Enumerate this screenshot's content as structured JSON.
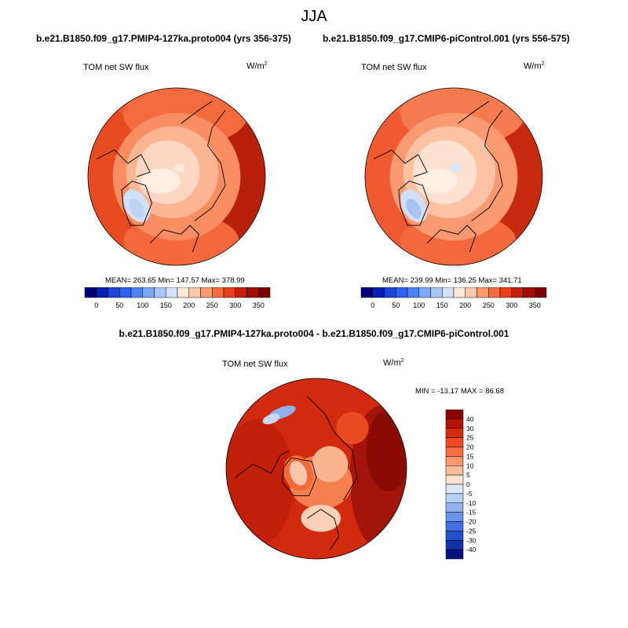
{
  "figure": {
    "season": "JJA"
  },
  "panels": [
    {
      "id": "left",
      "title": "b.e21.B1850.f09_g17.PMIP4-127ka.proto004 (yrs 356-375)",
      "variable": "TOM net SW flux",
      "units_base": "W/m",
      "units_exp": "2",
      "stats_text": "MEAN= 263.65  Min= 147.57  Max= 378.99",
      "mean": 263.65,
      "min": 147.57,
      "max": 378.99
    },
    {
      "id": "right",
      "title": "b.e21.B1850.f09_g17.CMIP6-piControl.001 (yrs 556-575)",
      "variable": "TOM net SW flux",
      "units_base": "W/m",
      "units_exp": "2",
      "stats_text": "MEAN= 239.99  Min= 136.25  Max= 341.71",
      "mean": 239.99,
      "min": 136.25,
      "max": 341.71
    },
    {
      "id": "diff",
      "title": "b.e21.B1850.f09_g17.PMIP4-127ka.proto004 - b.e21.B1850.f09_g17.CMIP6-piControl.001",
      "variable": "TOM net SW flux",
      "units_base": "W/m",
      "units_exp": "2",
      "stats_text": "MIN = -13.17 MAX =  86.68",
      "min": -13.17,
      "max": 86.68
    }
  ],
  "chart_data": [
    {
      "type": "heatmap",
      "projection": "north-polar-stereographic",
      "title": "b.e21.B1850.f09_g17.PMIP4-127ka.proto004 (yrs 356-375)",
      "variable": "TOM net SW flux",
      "units": "W/m2",
      "colorbar": {
        "orientation": "horizontal",
        "tick_labels": [
          "0",
          "50",
          "100",
          "150",
          "200",
          "250",
          "300",
          "350"
        ],
        "levels": [
          0,
          25,
          50,
          75,
          100,
          125,
          150,
          175,
          200,
          225,
          250,
          275,
          300,
          325,
          350
        ],
        "colors": [
          "#00007a",
          "#0a1fb0",
          "#1a46d8",
          "#2f62ec",
          "#4f82f5",
          "#7ea8f5",
          "#aac6f5",
          "#d4e3f8",
          "#fde8da",
          "#fcc9ad",
          "#fb9b72",
          "#f96b40",
          "#ea3f1a",
          "#c5200c",
          "#a00c06",
          "#7a0000"
        ]
      }
    },
    {
      "type": "heatmap",
      "projection": "north-polar-stereographic",
      "title": "b.e21.B1850.f09_g17.CMIP6-piControl.001 (yrs 556-575)",
      "variable": "TOM net SW flux",
      "units": "W/m2",
      "colorbar": {
        "orientation": "horizontal",
        "tick_labels": [
          "0",
          "50",
          "100",
          "150",
          "200",
          "250",
          "300",
          "350"
        ],
        "levels": [
          0,
          25,
          50,
          75,
          100,
          125,
          150,
          175,
          200,
          225,
          250,
          275,
          300,
          325,
          350
        ],
        "colors": [
          "#00007a",
          "#0a1fb0",
          "#1a46d8",
          "#2f62ec",
          "#4f82f5",
          "#7ea8f5",
          "#aac6f5",
          "#d4e3f8",
          "#fde8da",
          "#fcc9ad",
          "#fb9b72",
          "#f96b40",
          "#ea3f1a",
          "#c5200c",
          "#a00c06",
          "#7a0000"
        ]
      }
    },
    {
      "type": "heatmap",
      "projection": "north-polar-stereographic",
      "title": "b.e21.B1850.f09_g17.PMIP4-127ka.proto004 - b.e21.B1850.f09_g17.CMIP6-piControl.001",
      "variable": "TOM net SW flux",
      "units": "W/m2",
      "colorbar": {
        "orientation": "vertical",
        "tick_labels": [
          "40",
          "30",
          "25",
          "20",
          "15",
          "10",
          "5",
          "0",
          "-5",
          "-10",
          "-15",
          "-20",
          "-25",
          "-30",
          "-40"
        ],
        "colors_top_to_bottom": [
          "#8a0000",
          "#b51305",
          "#d62b0e",
          "#ef4a21",
          "#f86e45",
          "#fb966e",
          "#fcbc9b",
          "#fde2cf",
          "#dbe8f6",
          "#b8d0f3",
          "#8fb2ef",
          "#6a93ea",
          "#4571e0",
          "#2450c8",
          "#1432a8",
          "#06127a"
        ]
      }
    }
  ]
}
